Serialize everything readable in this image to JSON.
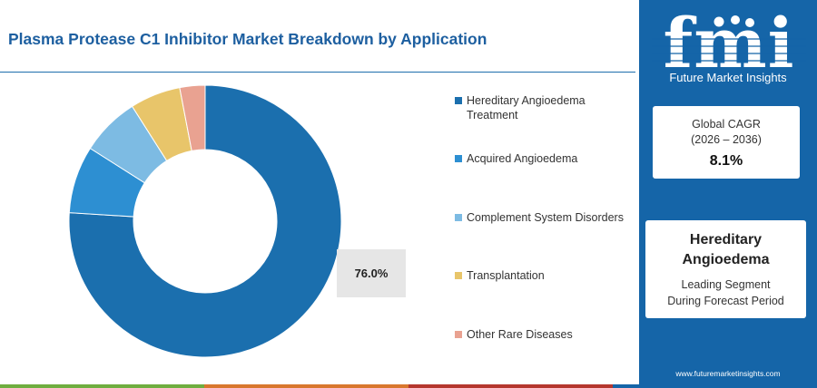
{
  "header": {
    "title": "Plasma Protease C1 Inhibitor Market Breakdown by Application"
  },
  "chart_data": {
    "type": "pie",
    "variant": "donut",
    "categories": [
      "Hereditary Angioedema Treatment",
      "Acquired Angioedema",
      "Complement System Disorders",
      "Transplantation",
      "Other Rare Diseases"
    ],
    "values": [
      76.0,
      8.0,
      7.0,
      6.0,
      3.0
    ],
    "colors": [
      "#1b6fae",
      "#2d8fd2",
      "#7dbbe3",
      "#e8c56a",
      "#e9a291"
    ],
    "labels": [
      {
        "category": "Hereditary Angioedema Treatment",
        "text": "76.0%"
      }
    ],
    "legend_placement": "right"
  },
  "legend": {
    "items": [
      {
        "lines": [
          "Hereditary Angioedema",
          "Treatment"
        ],
        "color": "#1b6fae"
      },
      {
        "lines": [
          "Acquired Angioedema"
        ],
        "color": "#2d8fd2"
      },
      {
        "lines": [
          "Complement System Disorders"
        ],
        "color": "#7dbbe3"
      },
      {
        "lines": [
          "Transplantation"
        ],
        "color": "#e8c56a"
      },
      {
        "lines": [
          "Other Rare Diseases"
        ],
        "color": "#e9a291"
      }
    ]
  },
  "sidebar": {
    "brand_name": "fmi",
    "brand_tagline": "Future Market Insights",
    "cagr": {
      "label": "Global CAGR",
      "period": "(2026 – 2036)",
      "value": "8.1%"
    },
    "segment": {
      "name_lines": [
        "Hereditary",
        "Angioedema"
      ],
      "desc_lines": [
        "Leading Segment",
        "During Forecast Period"
      ]
    },
    "website": "www.futuremarketinsights.com"
  },
  "colors": {
    "panel_blue": "#1565a8",
    "strip": [
      "#6fae3f",
      "#d9772e",
      "#b5372e",
      "#1565a8"
    ]
  }
}
